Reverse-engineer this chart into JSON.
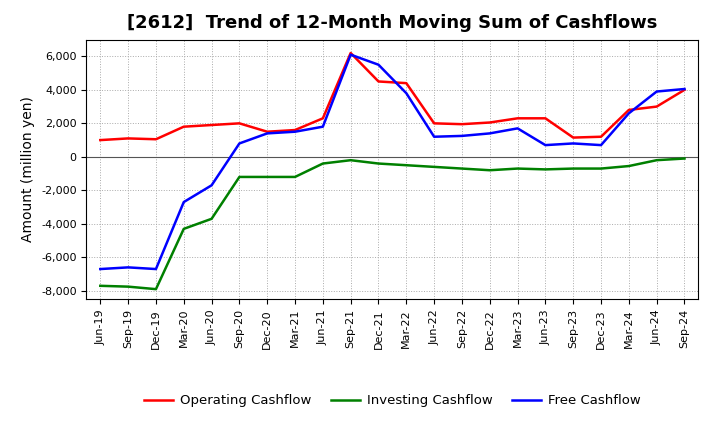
{
  "title": "[2612]  Trend of 12-Month Moving Sum of Cashflows",
  "ylabel": "Amount (million yen)",
  "background_color": "#ffffff",
  "plot_bg_color": "#ffffff",
  "grid_color": "#aaaaaa",
  "title_fontsize": 13,
  "ylabel_fontsize": 10,
  "legend_fontsize": 9.5,
  "tick_fontsize": 8,
  "ylim": [
    -8500,
    7000
  ],
  "yticks": [
    -8000,
    -6000,
    -4000,
    -2000,
    0,
    2000,
    4000,
    6000
  ],
  "x_labels": [
    "Jun-19",
    "Sep-19",
    "Dec-19",
    "Mar-20",
    "Jun-20",
    "Sep-20",
    "Dec-20",
    "Mar-21",
    "Jun-21",
    "Sep-21",
    "Dec-21",
    "Mar-22",
    "Jun-22",
    "Sep-22",
    "Dec-22",
    "Mar-23",
    "Jun-23",
    "Sep-23",
    "Dec-23",
    "Mar-24",
    "Jun-24",
    "Sep-24"
  ],
  "op_vals": [
    1000,
    1100,
    1050,
    1800,
    1900,
    2000,
    1500,
    1600,
    2300,
    6200,
    4500,
    4400,
    2000,
    1950,
    2050,
    2300,
    2300,
    1150,
    1200,
    2800,
    3000,
    4000
  ],
  "inv_vals": [
    -7700,
    -7750,
    -7900,
    -4300,
    -3700,
    -1200,
    -1200,
    -1200,
    -400,
    -200,
    -400,
    -500,
    -600,
    -700,
    -800,
    -700,
    -750,
    -700,
    -700,
    -550,
    -200,
    -100
  ],
  "fr_vals": [
    -6700,
    -6600,
    -6700,
    -2700,
    -1700,
    800,
    1400,
    1500,
    1800,
    6100,
    5500,
    3800,
    1200,
    1250,
    1400,
    1700,
    700,
    800,
    700,
    2600,
    3900,
    4050
  ],
  "operating_color": "#ff0000",
  "investing_color": "#008000",
  "free_color": "#0000ff",
  "line_width": 1.8
}
